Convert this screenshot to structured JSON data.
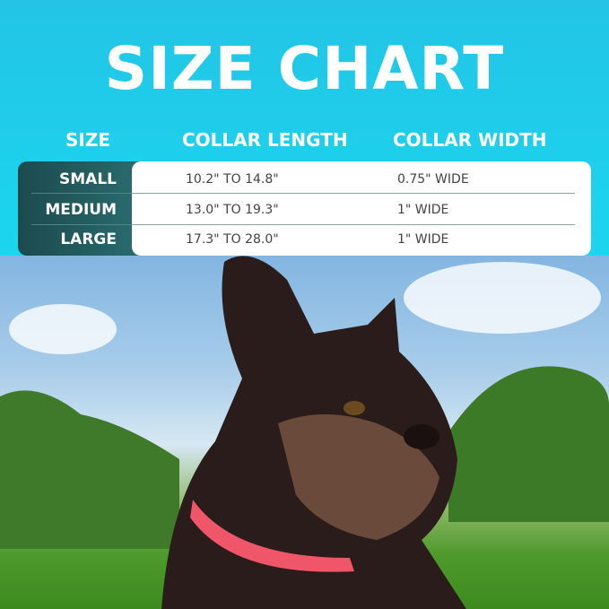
{
  "title": "SIZE CHART",
  "headers": {
    "size": "SIZE",
    "length": "COLLAR LENGTH",
    "width": "COLLAR WIDTH"
  },
  "rows": [
    {
      "size": "SMALL",
      "length": "10.2\" TO 14.8\"",
      "width": "0.75\" WIDE"
    },
    {
      "size": "MEDIUM",
      "length": "13.0\" TO 19.3\"",
      "width": "1\" WIDE"
    },
    {
      "size": "LARGE",
      "length": "17.3\" TO 28.0\"",
      "width": "1\" WIDE"
    }
  ],
  "colors": {
    "background": "#1fd3ea",
    "size_panel": "#1b4a4e",
    "collar": "#f0566a"
  }
}
